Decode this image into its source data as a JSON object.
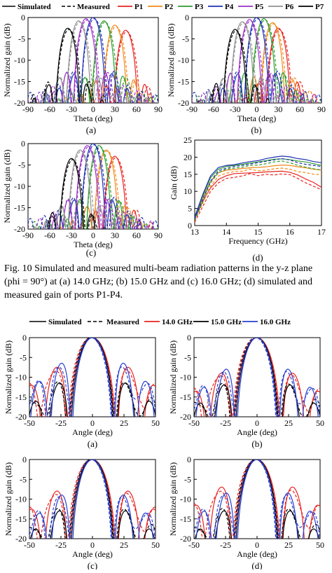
{
  "figure_top": {
    "legend": {
      "simulated": "Simulated",
      "measured": "Measured",
      "ports": [
        "P1",
        "P2",
        "P3",
        "P4",
        "P5",
        "P6",
        "P7"
      ]
    },
    "caption": "Fig. 10 Simulated and measured multi-beam radiation patterns in the y-z plane (phi = 90°) at (a) 14.0 GHz; (b) 15.0 GHz and (c) 16.0 GHz; (d) simulated and measured gain of ports P1-P4."
  },
  "figure_bottom": {
    "legend": {
      "simulated": "Simulated",
      "measured": "Measured",
      "freqs": [
        "14.0 GHz",
        "15.0 GHz",
        "16.0 GHz"
      ]
    }
  },
  "colors": {
    "P1": "#e8231f",
    "P2": "#f08a1c",
    "P3": "#2e9e2e",
    "P4": "#1f2fb5",
    "P5": "#9b2fc6",
    "P6": "#909090",
    "P7": "#000000",
    "f14": "#e8231f",
    "f15": "#000000",
    "f16": "#2a3fd0"
  },
  "chart_data": [
    {
      "type": "line",
      "id": "a",
      "panel_label": "(a)",
      "xlabel": "Theta (deg)",
      "ylabel": "Normalized gain (dB)",
      "xlim": [
        -90,
        90
      ],
      "ylim": [
        -20,
        0
      ],
      "xticks": [
        -90,
        -60,
        -30,
        0,
        30,
        60,
        90
      ],
      "yticks": [
        0,
        -5,
        -10,
        -15,
        -20
      ],
      "beam_peaks_deg": {
        "P1": 45,
        "P2": 30,
        "P3": 15,
        "P4": 0,
        "P5": -10,
        "P6": -20,
        "P7": -35
      },
      "peak_levels_db": {
        "P1": -3.0,
        "P2": -1.8,
        "P3": -0.8,
        "P4": 0,
        "P5": -0.3,
        "P6": -0.8,
        "P7": -2.5
      }
    },
    {
      "type": "line",
      "id": "b",
      "panel_label": "(b)",
      "xlabel": "Theta (deg)",
      "ylabel": "Normalized gain (dB)",
      "xlim": [
        -90,
        90
      ],
      "ylim": [
        -20,
        0
      ],
      "xticks": [
        -90,
        -60,
        -30,
        0,
        30,
        60,
        90
      ],
      "yticks": [
        0,
        -5,
        -10,
        -15,
        -20
      ],
      "beam_peaks_deg": {
        "P1": 30,
        "P2": 22,
        "P3": 10,
        "P4": 0,
        "P5": -10,
        "P6": -20,
        "P7": -30
      },
      "peak_levels_db": {
        "P1": -2.5,
        "P2": -1.2,
        "P3": -0.3,
        "P4": 0,
        "P5": -0.5,
        "P6": -1.0,
        "P7": -2.8
      }
    },
    {
      "type": "line",
      "id": "c",
      "panel_label": "(c)",
      "xlabel": "Theta (deg)",
      "ylabel": "Normalized gain (dB)",
      "xlim": [
        -90,
        90
      ],
      "ylim": [
        -20,
        0
      ],
      "xticks": [
        -90,
        -60,
        -30,
        0,
        30,
        60,
        90
      ],
      "yticks": [
        0,
        -5,
        -10,
        -15,
        -20
      ],
      "beam_peaks_deg": {
        "P1": 30,
        "P2": 18,
        "P3": 8,
        "P4": 0,
        "P5": -8,
        "P6": -18,
        "P7": -30
      },
      "peak_levels_db": {
        "P1": -3.0,
        "P2": -1.5,
        "P3": -0.5,
        "P4": 0,
        "P5": -0.5,
        "P6": -1.5,
        "P7": -3.5
      }
    },
    {
      "type": "line",
      "id": "d",
      "panel_label": "(d)",
      "xlabel": "Frequency (GHz)",
      "ylabel": "Gain (dB)",
      "xlim": [
        13,
        17
      ],
      "ylim": [
        0,
        25
      ],
      "xticks": [
        13,
        14,
        15,
        16,
        17
      ],
      "yticks": [
        0,
        5,
        10,
        15,
        20,
        25
      ],
      "x": [
        13.0,
        13.25,
        13.5,
        13.75,
        14.0,
        14.25,
        14.5,
        14.75,
        15.0,
        15.25,
        15.5,
        15.75,
        16.0,
        16.25,
        16.5,
        16.75,
        17.0
      ],
      "series": [
        {
          "port": "P1",
          "kind": "simulated",
          "values": [
            2,
            7,
            11,
            13.5,
            14.6,
            15.2,
            15.3,
            15.4,
            15.5,
            15.7,
            15.8,
            15.9,
            15.6,
            14.8,
            13.6,
            12.6,
            11.2
          ]
        },
        {
          "port": "P1",
          "kind": "measured",
          "values": [
            1,
            5.5,
            10,
            12.5,
            13.8,
            14.1,
            14.5,
            15.2,
            14.6,
            15.0,
            14.8,
            15.1,
            14.9,
            13.8,
            12.5,
            11.5,
            10.5
          ]
        },
        {
          "port": "P2",
          "kind": "simulated",
          "values": [
            2,
            8,
            13,
            15.5,
            16.2,
            16.4,
            16.7,
            16.9,
            17.0,
            17.2,
            17.5,
            17.7,
            17.6,
            17.2,
            16.9,
            16.5,
            16.2
          ]
        },
        {
          "port": "P2",
          "kind": "measured",
          "values": [
            1.5,
            6.5,
            11.5,
            14.5,
            15.3,
            15.8,
            15.9,
            16.5,
            16.0,
            16.2,
            16.6,
            16.8,
            16.5,
            15.8,
            15.5,
            15.0,
            14.9
          ]
        },
        {
          "port": "P3",
          "kind": "simulated",
          "values": [
            2,
            8.5,
            14,
            16.5,
            17.3,
            17.6,
            17.9,
            18.3,
            18.6,
            19.0,
            19.4,
            19.5,
            19.3,
            18.9,
            18.6,
            18.1,
            17.6
          ]
        },
        {
          "port": "P3",
          "kind": "measured",
          "values": [
            1.5,
            7,
            12.5,
            15.5,
            16.5,
            16.8,
            17.1,
            17.6,
            17.7,
            18.1,
            18.6,
            18.9,
            18.4,
            17.6,
            17.1,
            16.6,
            16.3
          ]
        },
        {
          "port": "P4",
          "kind": "simulated",
          "values": [
            2.5,
            9,
            14.5,
            17.0,
            17.6,
            17.8,
            18.3,
            18.7,
            19.0,
            19.6,
            20.0,
            20.3,
            20.1,
            19.6,
            19.3,
            18.7,
            18.4
          ]
        },
        {
          "port": "P4",
          "kind": "measured",
          "values": [
            2,
            7.5,
            13,
            16,
            16.8,
            17.3,
            17.6,
            18.0,
            18.4,
            18.8,
            19.2,
            19.6,
            19.2,
            18.4,
            17.9,
            17.6,
            17.3
          ]
        }
      ]
    },
    {
      "type": "line",
      "id": "e",
      "panel_label": "(a)",
      "xlabel": "Angle (deg)",
      "ylabel": "Normalized gain (dB)",
      "xlim": [
        -50,
        50
      ],
      "ylim": [
        -20,
        0
      ],
      "xticks": [
        -50,
        -25,
        0,
        25,
        50
      ],
      "yticks": [
        0,
        -5,
        -10,
        -15,
        -20
      ],
      "sidelobe_db": {
        "f14": -7.5,
        "f15": -11.5,
        "f16": -6.5
      }
    },
    {
      "type": "line",
      "id": "f",
      "panel_label": "(b)",
      "xlabel": "Angle (deg)",
      "ylabel": "Normalized gain (dB)",
      "xlim": [
        -50,
        50
      ],
      "ylim": [
        -20,
        0
      ],
      "xticks": [
        -50,
        -25,
        0,
        25,
        50
      ],
      "yticks": [
        0,
        -5,
        -10,
        -15,
        -20
      ],
      "sidelobe_db": {
        "f14": -9.0,
        "f15": -12.0,
        "f16": -8.0
      }
    },
    {
      "type": "line",
      "id": "g",
      "panel_label": "(c)",
      "xlabel": "Angle (deg)",
      "ylabel": "Normalized gain (dB)",
      "xlim": [
        -50,
        50
      ],
      "ylim": [
        -20,
        0
      ],
      "xticks": [
        -50,
        -25,
        0,
        25,
        50
      ],
      "yticks": [
        0,
        -5,
        -10,
        -15,
        -20
      ],
      "sidelobe_db": {
        "f14": -8.0,
        "f15": -13.0,
        "f16": -9.0
      }
    },
    {
      "type": "line",
      "id": "h",
      "panel_label": "(d)",
      "xlabel": "Angle (deg)",
      "ylabel": "Normalized gain (dB)",
      "xlim": [
        -50,
        50
      ],
      "ylim": [
        -20,
        0
      ],
      "xticks": [
        -50,
        -25,
        0,
        25,
        50
      ],
      "yticks": [
        0,
        -5,
        -10,
        -15,
        -20
      ],
      "sidelobe_db": {
        "f14": -7.0,
        "f15": -13.0,
        "f16": -8.5
      }
    }
  ]
}
